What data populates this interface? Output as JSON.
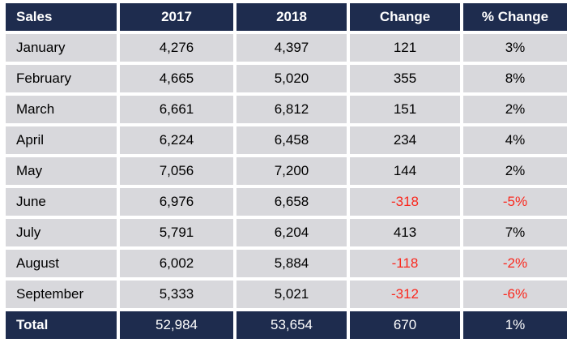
{
  "chart_data": {
    "type": "table",
    "columns": [
      {
        "key": "month",
        "label": "Sales"
      },
      {
        "key": "y2017",
        "label": "2017"
      },
      {
        "key": "y2018",
        "label": "2018"
      },
      {
        "key": "change",
        "label": "Change"
      },
      {
        "key": "pct_change",
        "label": "% Change"
      }
    ],
    "rows": [
      {
        "month": "January",
        "y2017": "4,276",
        "y2018": "4,397",
        "change": "121",
        "pct_change": "3%"
      },
      {
        "month": "February",
        "y2017": "4,665",
        "y2018": "5,020",
        "change": "355",
        "pct_change": "8%"
      },
      {
        "month": "March",
        "y2017": "6,661",
        "y2018": "6,812",
        "change": "151",
        "pct_change": "2%"
      },
      {
        "month": "April",
        "y2017": "6,224",
        "y2018": "6,458",
        "change": "234",
        "pct_change": "4%"
      },
      {
        "month": "May",
        "y2017": "7,056",
        "y2018": "7,200",
        "change": "144",
        "pct_change": "2%"
      },
      {
        "month": "June",
        "y2017": "6,976",
        "y2018": "6,658",
        "change": "-318",
        "pct_change": "-5%"
      },
      {
        "month": "July",
        "y2017": "5,791",
        "y2018": "6,204",
        "change": "413",
        "pct_change": "7%"
      },
      {
        "month": "August",
        "y2017": "6,002",
        "y2018": "5,884",
        "change": "-118",
        "pct_change": "-2%"
      },
      {
        "month": "September",
        "y2017": "5,333",
        "y2018": "5,021",
        "change": "-312",
        "pct_change": "-6%"
      }
    ],
    "total": {
      "month": "Total",
      "y2017": "52,984",
      "y2018": "53,654",
      "change": "670",
      "pct_change": "1%"
    }
  },
  "colors": {
    "header_bg": "#1e2c4e",
    "cell_bg": "#d8d8dc",
    "negative_text": "#fa281e",
    "header_text": "#ffffff",
    "body_text": "#000000",
    "gap": "#ffffff"
  }
}
